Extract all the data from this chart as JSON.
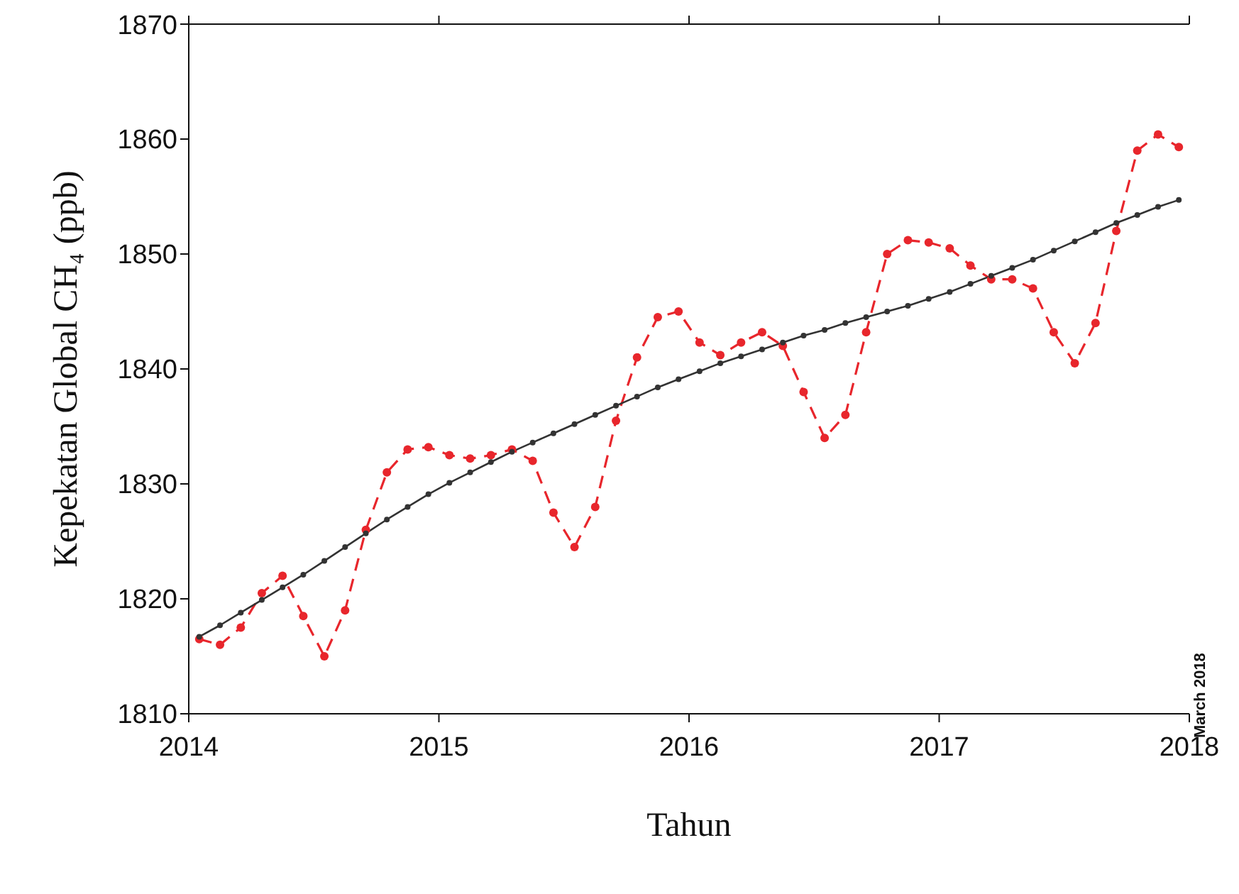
{
  "chart_data": {
    "type": "line",
    "xlabel": "Tahun",
    "ylabel": "Kepekatan Global CH₄ (ppb)",
    "annotations": [
      "March 2018"
    ],
    "x": [
      2014.042,
      2014.125,
      2014.208,
      2014.292,
      2014.375,
      2014.458,
      2014.542,
      2014.625,
      2014.708,
      2014.792,
      2014.875,
      2014.958,
      2015.042,
      2015.125,
      2015.208,
      2015.292,
      2015.375,
      2015.458,
      2015.542,
      2015.625,
      2015.708,
      2015.792,
      2015.875,
      2015.958,
      2016.042,
      2016.125,
      2016.208,
      2016.292,
      2016.375,
      2016.458,
      2016.542,
      2016.625,
      2016.708,
      2016.792,
      2016.875,
      2016.958,
      2017.042,
      2017.125,
      2017.208,
      2017.292,
      2017.375,
      2017.458,
      2017.542,
      2017.625,
      2017.708,
      2017.792,
      2017.875,
      2017.958
    ],
    "series": [
      {
        "color": "#e8262c",
        "line_style": "dashed",
        "values": [
          1816.5,
          1816.0,
          1817.5,
          1820.5,
          1822.0,
          1818.5,
          1815.0,
          1819.0,
          1826.0,
          1831.0,
          1833.0,
          1833.2,
          1832.5,
          1832.2,
          1832.5,
          1833.0,
          1832.0,
          1827.5,
          1824.5,
          1828.0,
          1835.5,
          1841.0,
          1844.5,
          1845.0,
          1842.3,
          1841.2,
          1842.3,
          1843.2,
          1842.0,
          1838.0,
          1834.0,
          1836.0,
          1843.2,
          1850.0,
          1851.2,
          1851.0,
          1850.5,
          1849.0,
          1847.8,
          1847.8,
          1847.0,
          1843.2,
          1840.5,
          1844.0,
          1852.0,
          1859.0,
          1860.4,
          1859.3
        ]
      },
      {
        "color": "#333333",
        "line_style": "solid",
        "values": [
          1816.7,
          1817.7,
          1818.8,
          1819.9,
          1821.0,
          1822.1,
          1823.3,
          1824.5,
          1825.7,
          1826.9,
          1828.0,
          1829.1,
          1830.1,
          1831.0,
          1831.9,
          1832.8,
          1833.6,
          1834.4,
          1835.2,
          1836.0,
          1836.8,
          1837.6,
          1838.4,
          1839.1,
          1839.8,
          1840.5,
          1841.1,
          1841.7,
          1842.3,
          1842.9,
          1843.4,
          1844.0,
          1844.5,
          1845.0,
          1845.5,
          1846.1,
          1846.7,
          1847.4,
          1848.1,
          1848.8,
          1849.5,
          1850.3,
          1851.1,
          1851.9,
          1852.7,
          1853.4,
          1854.1,
          1854.7
        ]
      }
    ],
    "xlim": [
      2014,
      2018
    ],
    "xticks": [
      2014,
      2015,
      2016,
      2017,
      2018
    ],
    "ylim": [
      1810,
      1870
    ],
    "yticks": [
      1810,
      1820,
      1830,
      1840,
      1850,
      1860,
      1870
    ],
    "marker": "circle",
    "grid": false,
    "legend": false
  }
}
